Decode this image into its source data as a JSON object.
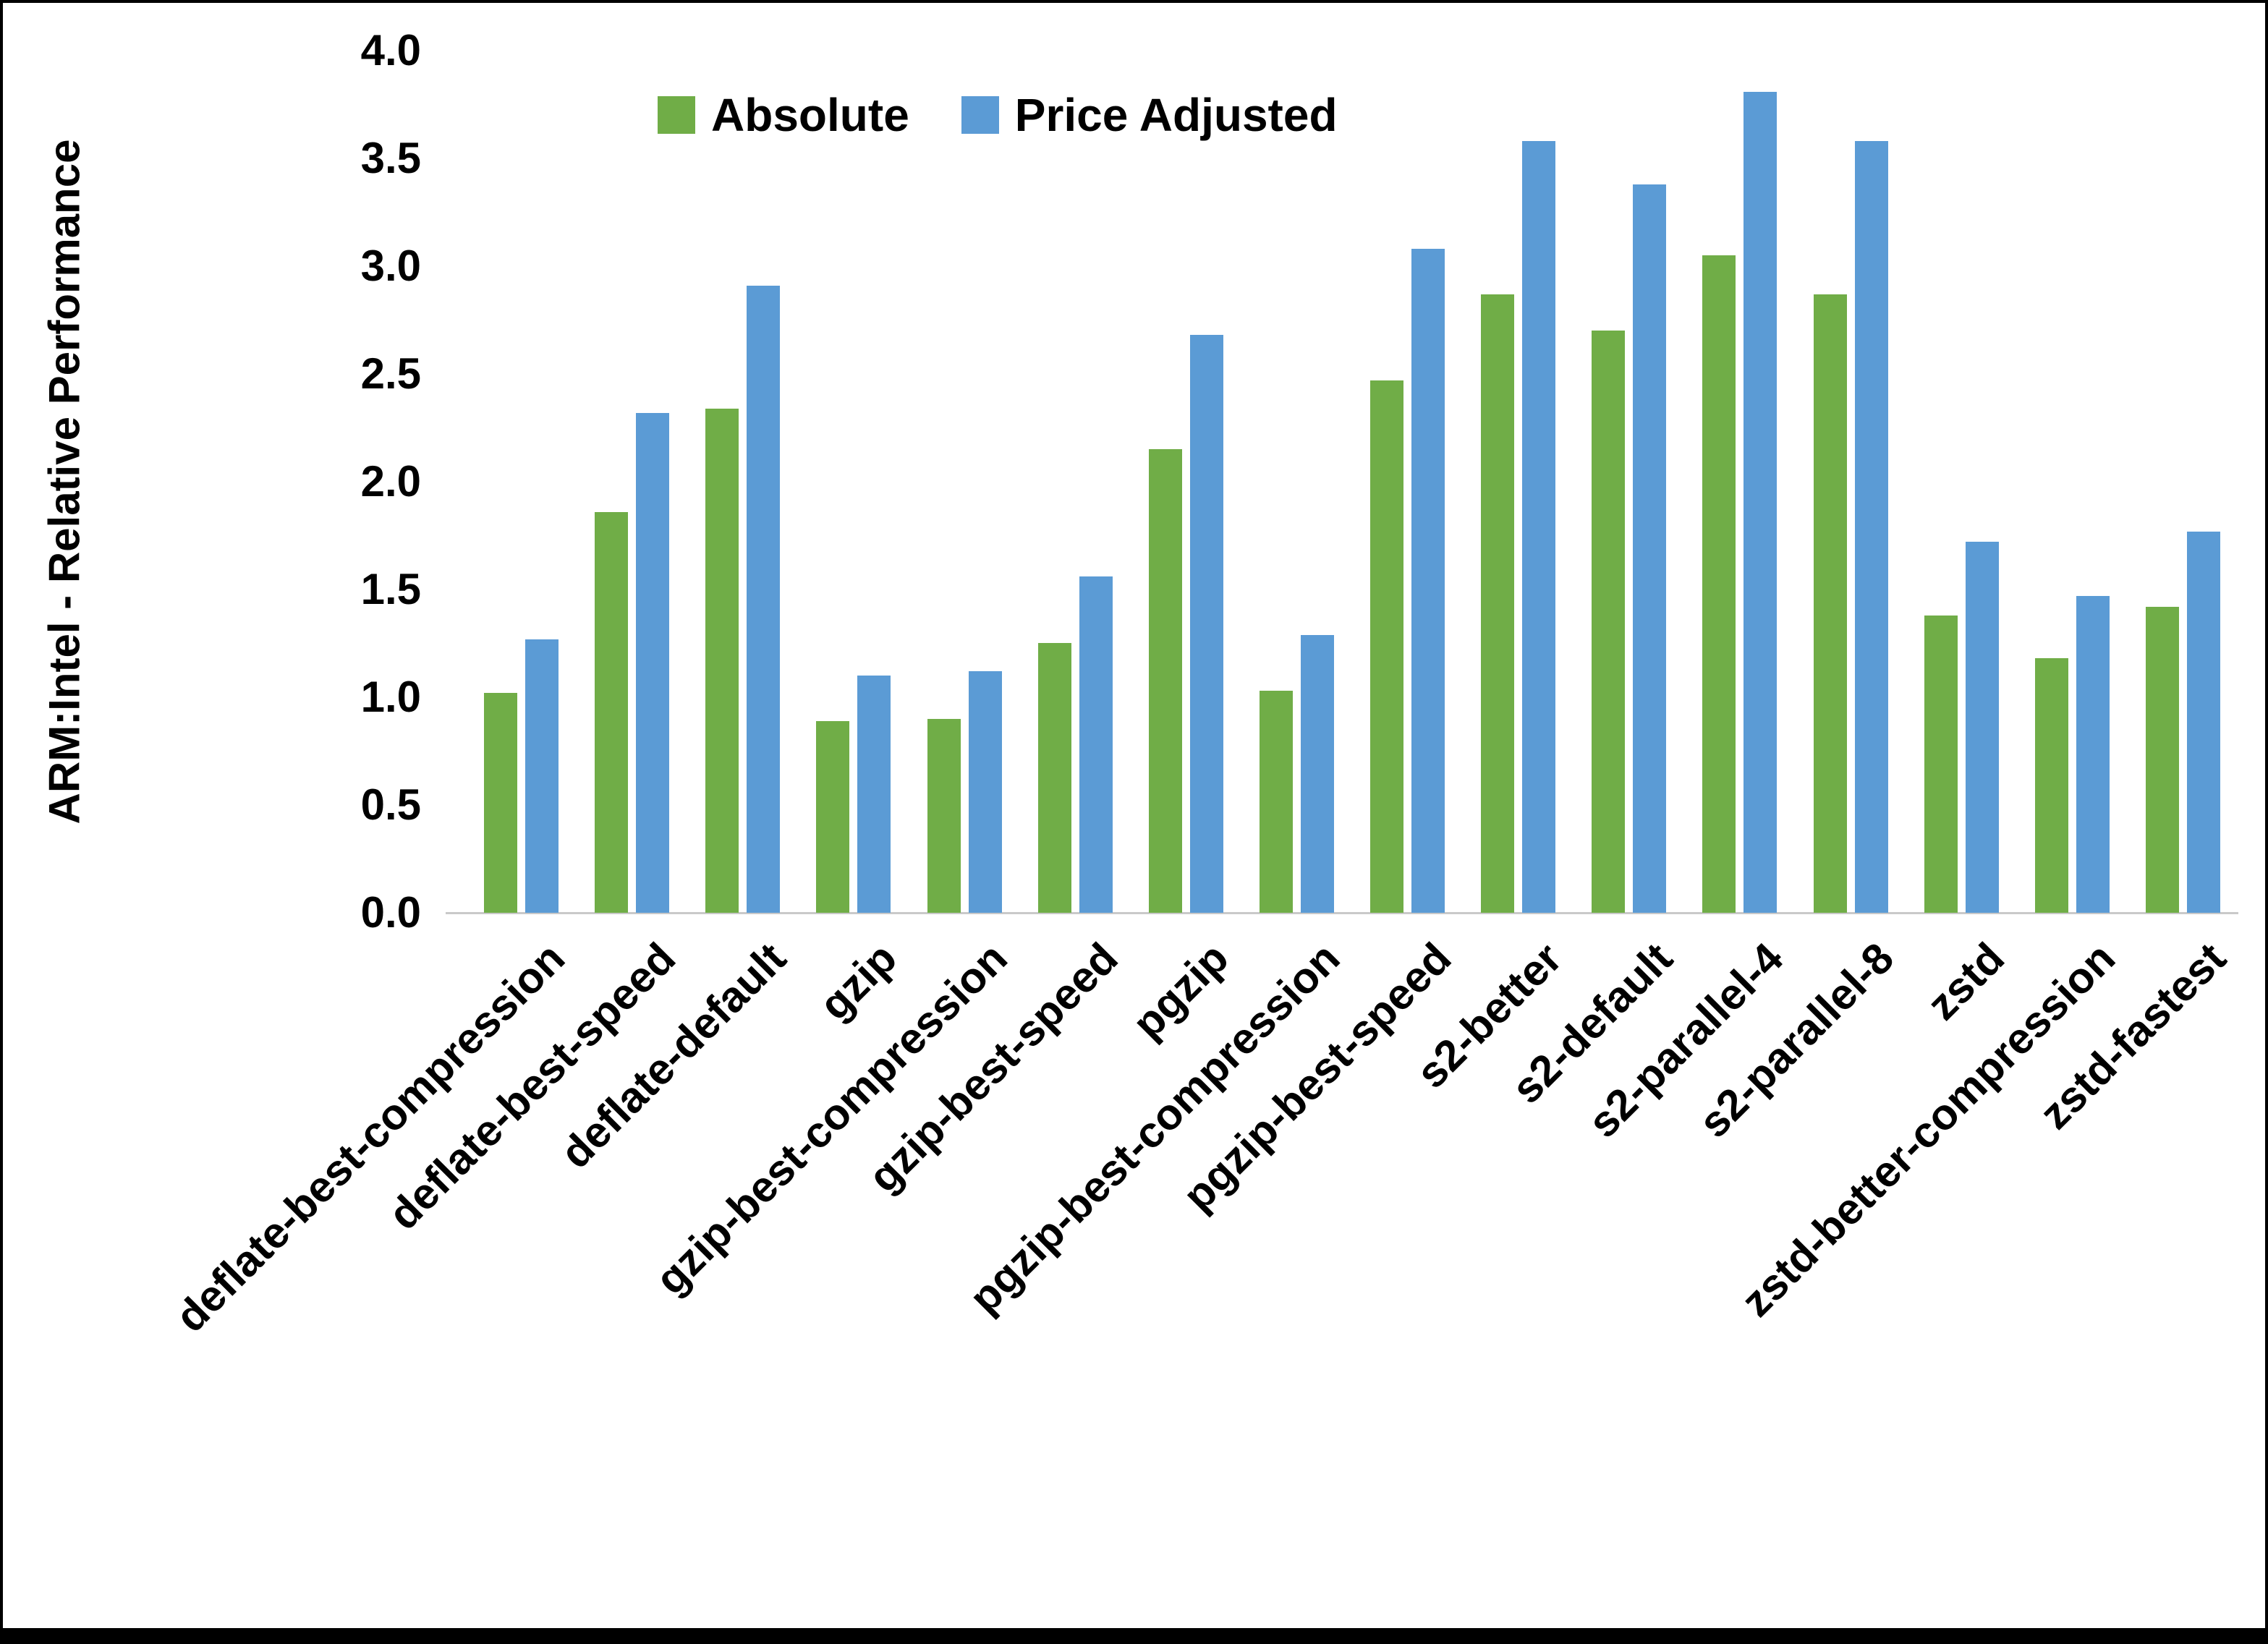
{
  "chart_data": {
    "type": "bar",
    "title": "",
    "xlabel": "",
    "ylabel": "ARM:Intel - Relative Performance",
    "ylim": [
      0,
      4.0
    ],
    "ytick_step": 0.5,
    "ytick_labels": [
      "0.0",
      "0.5",
      "1.0",
      "1.5",
      "2.0",
      "2.5",
      "3.0",
      "3.5",
      "4.0"
    ],
    "grid": false,
    "legend_position": "top-center",
    "categories": [
      "deflate-best-compression",
      "deflate-best-speed",
      "deflate-default",
      "gzip",
      "gzip-best-compression",
      "gzip-best-speed",
      "pgzip",
      "pgzip-best-compression",
      "pgzip-best-speed",
      "s2-better",
      "s2-default",
      "s2-parallel-4",
      "s2-parallel-8",
      "zstd",
      "zstd-better-compression",
      "zstd-fastest"
    ],
    "series": [
      {
        "name": "Absolute",
        "color": "#70AD47",
        "values": [
          1.02,
          1.86,
          2.34,
          0.89,
          0.9,
          1.25,
          2.15,
          1.03,
          2.47,
          2.87,
          2.7,
          3.05,
          2.87,
          1.38,
          1.18,
          1.42
        ]
      },
      {
        "name": "Price Adjusted",
        "color": "#5B9BD5",
        "values": [
          1.27,
          2.32,
          2.91,
          1.1,
          1.12,
          1.56,
          2.68,
          1.29,
          3.08,
          3.58,
          3.38,
          3.81,
          3.58,
          1.72,
          1.47,
          1.77
        ]
      }
    ],
    "colors": {
      "axis_line": "#c9c9c9",
      "text": "#000000",
      "frame": "#000000"
    }
  }
}
